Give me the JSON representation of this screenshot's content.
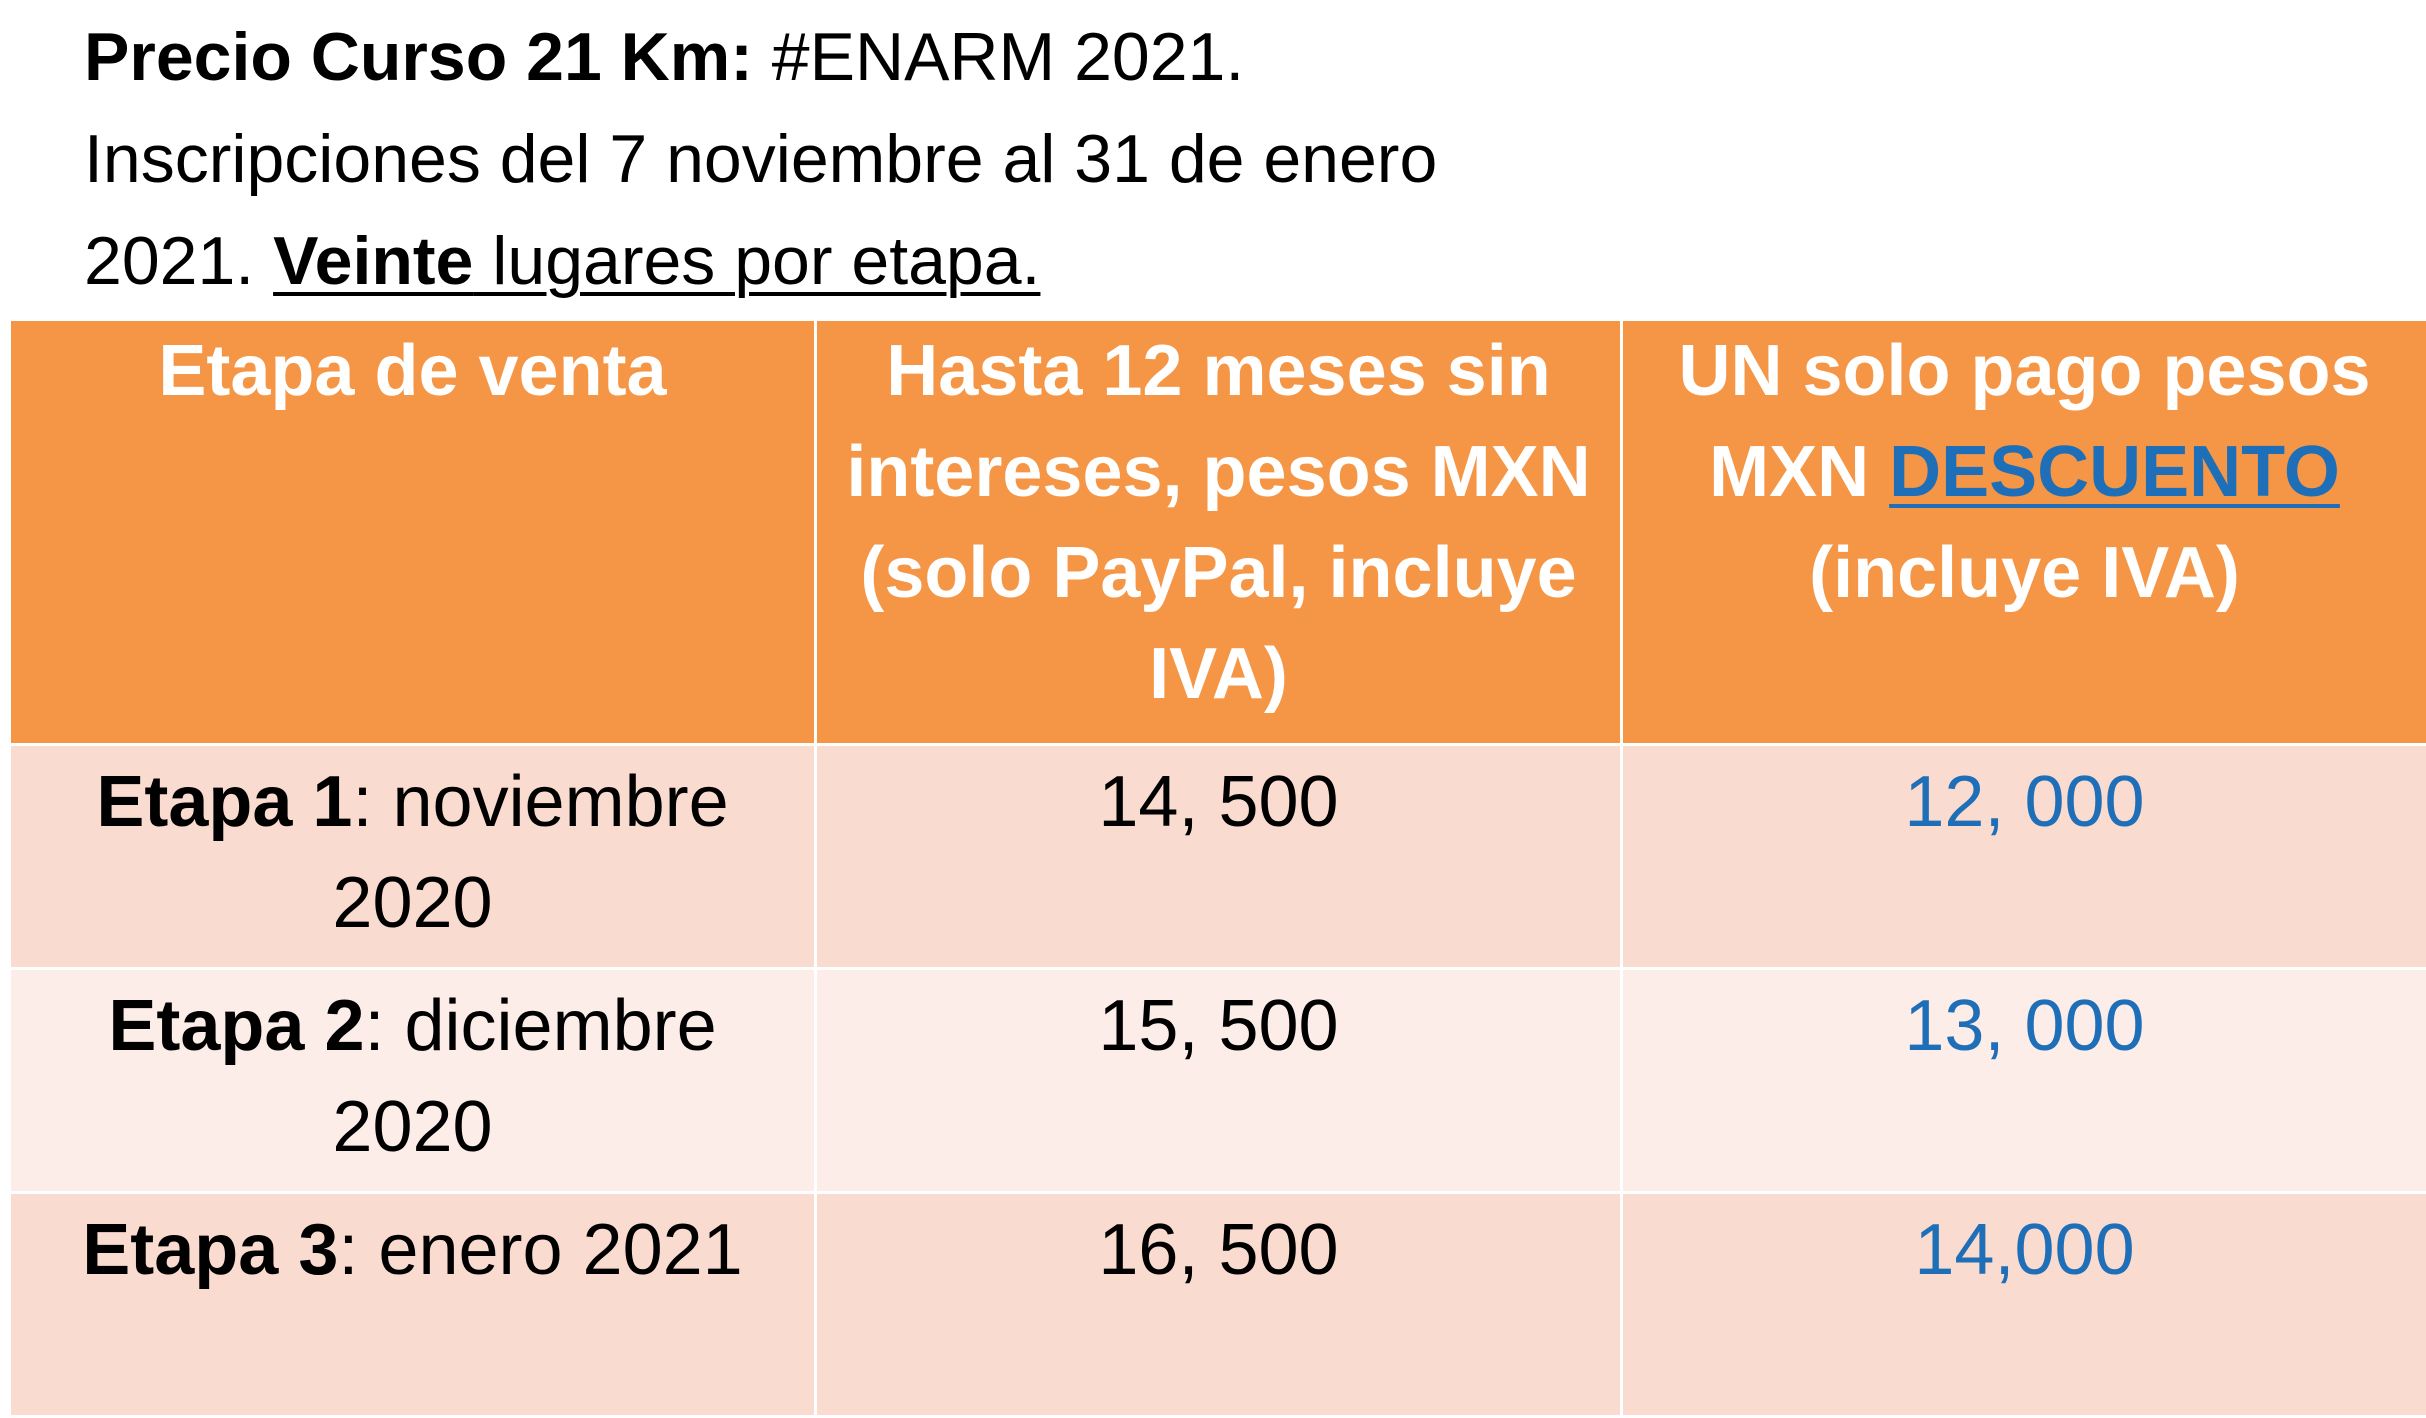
{
  "intro": {
    "title_bold": "Precio Curso 21 Km:",
    "title_rest": " #ENARM 2021.",
    "line2": "Inscripciones del 7 noviembre al 31 de enero",
    "line3_start": "2021. ",
    "line3_bold": "Veinte",
    "line3_end": " lugares por etapa."
  },
  "table": {
    "headers": {
      "col1": "Etapa de venta",
      "col2": "Hasta 12 meses sin intereses, pesos MXN (solo PayPal, incluye IVA)",
      "col3_start": "UN solo pago pesos MXN ",
      "col3_link": "DESCUENTO",
      "col3_end": " (incluye IVA)"
    },
    "rows": [
      {
        "stage": "Etapa 1",
        "period": ": noviembre 2020",
        "installments": "14, 500",
        "single": "12, 000"
      },
      {
        "stage": "Etapa 2",
        "period": ": diciembre 2020",
        "installments": "15, 500",
        "single": "13, 000"
      },
      {
        "stage": "Etapa 3",
        "period": ": enero 2021",
        "installments": "16, 500",
        "single": "14,000"
      }
    ]
  },
  "colors": {
    "header_bg": "#F59646",
    "row_odd_bg": "#FADBCF",
    "row_even_bg": "#FCEDE8",
    "accent_blue": "#1F6FB8"
  }
}
